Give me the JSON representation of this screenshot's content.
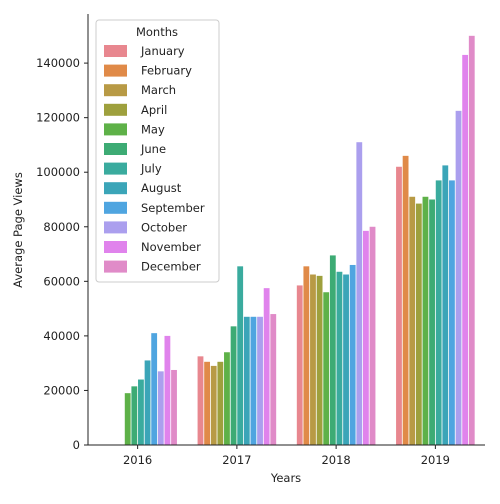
{
  "chart_data": {
    "type": "bar",
    "title": "",
    "xlabel": "Years",
    "ylabel": "Average Page Views",
    "ylim": [
      0,
      158000
    ],
    "yticks": [
      0,
      20000,
      40000,
      60000,
      80000,
      100000,
      120000,
      140000
    ],
    "grid": false,
    "legend_title": "Months",
    "legend_position": "top-left",
    "categories": [
      "2016",
      "2017",
      "2018",
      "2019"
    ],
    "series": [
      {
        "name": "January",
        "color": "#e8878f",
        "values": [
          null,
          32500,
          58500,
          102000
        ]
      },
      {
        "name": "February",
        "color": "#e08a48",
        "values": [
          null,
          30500,
          65500,
          106000
        ]
      },
      {
        "name": "March",
        "color": "#b89a45",
        "values": [
          null,
          29000,
          62500,
          91000
        ]
      },
      {
        "name": "April",
        "color": "#9ea03d",
        "values": [
          null,
          30500,
          62000,
          88500
        ]
      },
      {
        "name": "May",
        "color": "#5eb148",
        "values": [
          19000,
          34000,
          56000,
          91000
        ]
      },
      {
        "name": "June",
        "color": "#3dab74",
        "values": [
          21500,
          43500,
          69500,
          90000
        ]
      },
      {
        "name": "July",
        "color": "#3aab9e",
        "values": [
          24000,
          65500,
          63500,
          97000
        ]
      },
      {
        "name": "August",
        "color": "#3ba5b8",
        "values": [
          31000,
          47000,
          62500,
          102500
        ]
      },
      {
        "name": "September",
        "color": "#4fa5e0",
        "values": [
          41000,
          47000,
          66000,
          97000
        ]
      },
      {
        "name": "October",
        "color": "#ab9fee",
        "values": [
          27000,
          47000,
          111000,
          122500
        ]
      },
      {
        "name": "November",
        "color": "#e083ec",
        "values": [
          40000,
          57500,
          78500,
          143000
        ]
      },
      {
        "name": "December",
        "color": "#e08bc8",
        "values": [
          27500,
          48000,
          80000,
          150000
        ]
      }
    ]
  }
}
